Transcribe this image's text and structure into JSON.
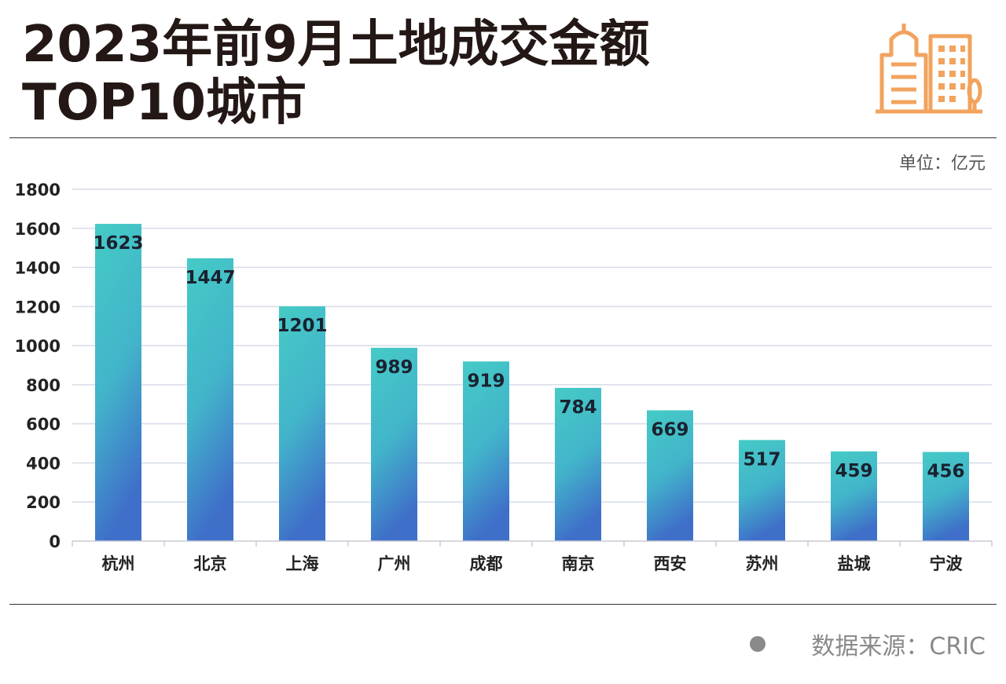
{
  "header": {
    "title_line1": "2023年前9月土地成交金额",
    "title_line2": "TOP10城市"
  },
  "unit_label": "单位：亿元",
  "source_label": "数据来源：CRIC",
  "colors": {
    "bar_top": "#45CBC6",
    "bar_bottom": "#3F6FC9",
    "grid": "#D6DCE8",
    "logo": "#F2A35E"
  },
  "logo_icon": "city-buildings-icon",
  "chart_data": {
    "type": "bar",
    "title": "2023年前9月土地成交金额TOP10城市",
    "ylabel": "",
    "xlabel": "",
    "unit": "亿元",
    "categories": [
      "杭州",
      "北京",
      "上海",
      "广州",
      "成都",
      "南京",
      "西安",
      "苏州",
      "盐城",
      "宁波"
    ],
    "values": [
      1623,
      1447,
      1201,
      989,
      919,
      784,
      669,
      517,
      459,
      456
    ],
    "ylim": [
      0,
      1800
    ],
    "yticks": [
      0,
      200,
      400,
      600,
      800,
      1000,
      1200,
      1400,
      1600,
      1800
    ],
    "grid": true,
    "legend": "none"
  }
}
